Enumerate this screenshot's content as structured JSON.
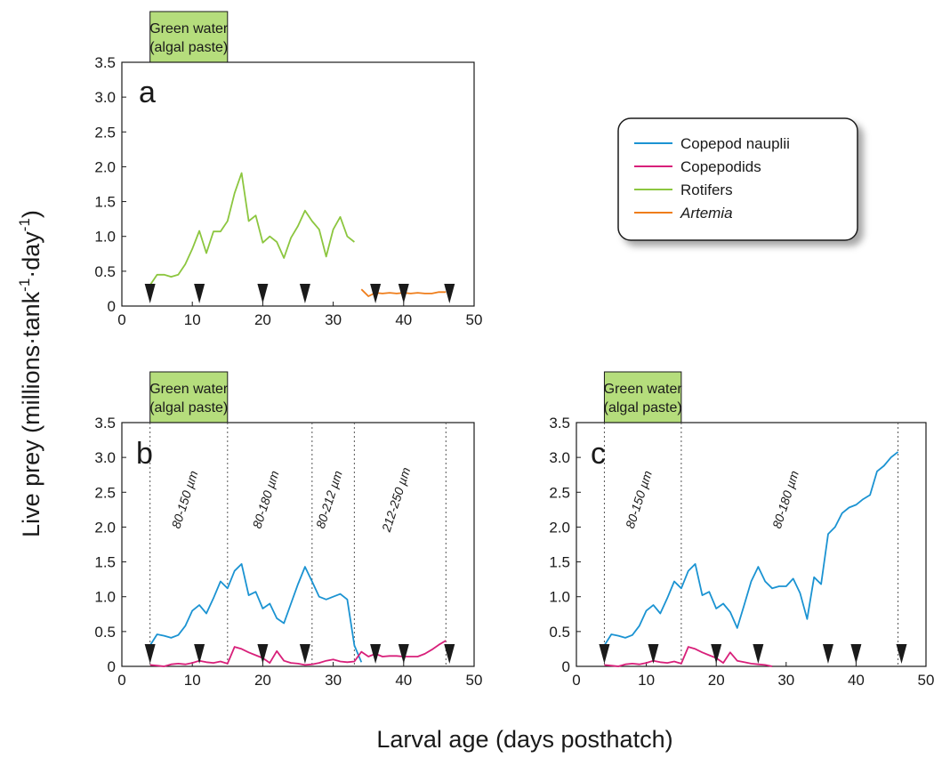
{
  "figure": {
    "ylabel_main": "Live prey (millions·tank",
    "ylabel_sup1": "-1",
    "ylabel_mid": "·day",
    "ylabel_sup2": "-1",
    "ylabel_end": ")",
    "xlabel": "Larval age (days posthatch)"
  },
  "green_water": {
    "line1": "Green water",
    "line2": "(algal paste)"
  },
  "colors": {
    "copepod_nauplii": "#1b93d2",
    "copepodids": "#d8207a",
    "rotifers": "#8cc63f",
    "artemia": "#ef7d1a",
    "green_box": "#b5dd7c"
  },
  "legend": {
    "items": [
      {
        "label": "Copepod nauplii",
        "color": "#1b93d2",
        "italic": false
      },
      {
        "label": "Copepodids",
        "color": "#d8207a",
        "italic": false
      },
      {
        "label": "Rotifers",
        "color": "#8cc63f",
        "italic": false
      },
      {
        "label": "Artemia",
        "color": "#ef7d1a",
        "italic": true
      }
    ]
  },
  "chart_data": [
    {
      "type": "line",
      "panel": "a",
      "xlim": [
        0,
        50
      ],
      "ylim": [
        0,
        3.5
      ],
      "xticks": [
        0,
        10,
        20,
        30,
        40,
        50
      ],
      "yticks": [
        0,
        0.5,
        1.0,
        1.5,
        2.0,
        2.5,
        3.0,
        3.5
      ],
      "ytick_labels": [
        "0",
        "0.5",
        "1.0",
        "1.5",
        "2.0",
        "2.5",
        "3.0",
        "3.5"
      ],
      "green_water_days": [
        4,
        15
      ],
      "markers_days": [
        4,
        11,
        20,
        26,
        36,
        40,
        46.5
      ],
      "dividers": [],
      "range_labels": [],
      "series": [
        {
          "key": "rotifers",
          "x": [
            4,
            5,
            6,
            7,
            8,
            9,
            10,
            11,
            12,
            13,
            14,
            15,
            16,
            17,
            18,
            19,
            20,
            21,
            22,
            23,
            24,
            25,
            26,
            27,
            28,
            29,
            30,
            31,
            32,
            33
          ],
          "y": [
            0.3,
            0.45,
            0.45,
            0.42,
            0.45,
            0.6,
            0.82,
            1.08,
            0.76,
            1.07,
            1.07,
            1.22,
            1.62,
            1.91,
            1.22,
            1.3,
            0.91,
            1.0,
            0.92,
            0.69,
            0.98,
            1.15,
            1.37,
            1.22,
            1.1,
            0.71,
            1.1,
            1.28,
            1.0,
            0.92
          ]
        },
        {
          "key": "artemia",
          "x": [
            34,
            35,
            36,
            37,
            38,
            39,
            40,
            41,
            42,
            43,
            44,
            45,
            46
          ],
          "y": [
            0.24,
            0.14,
            0.19,
            0.18,
            0.19,
            0.18,
            0.19,
            0.18,
            0.19,
            0.18,
            0.18,
            0.2,
            0.2
          ]
        }
      ]
    },
    {
      "type": "line",
      "panel": "b",
      "xlim": [
        0,
        50
      ],
      "ylim": [
        0,
        3.5
      ],
      "xticks": [
        0,
        10,
        20,
        30,
        40,
        50
      ],
      "yticks": [
        0,
        0.5,
        1.0,
        1.5,
        2.0,
        2.5,
        3.0,
        3.5
      ],
      "ytick_labels": [
        "0",
        "0.5",
        "1.0",
        "1.5",
        "2.0",
        "2.5",
        "3.0",
        "3.5"
      ],
      "green_water_days": [
        4,
        15
      ],
      "markers_days": [
        4,
        11,
        20,
        26,
        36,
        40,
        46.5
      ],
      "dividers": [
        4,
        15,
        27,
        33,
        46
      ],
      "range_labels": [
        {
          "text": "80-150 µm",
          "day": 9.5
        },
        {
          "text": "80-180 µm",
          "day": 21
        },
        {
          "text": "80-212 µm",
          "day": 30
        },
        {
          "text": "212-250 µm",
          "day": 39.5
        }
      ],
      "series": [
        {
          "key": "copepod_nauplii",
          "x": [
            4,
            5,
            6,
            7,
            8,
            9,
            10,
            11,
            12,
            13,
            14,
            15,
            16,
            17,
            18,
            19,
            20,
            21,
            22,
            23,
            24,
            25,
            26,
            27,
            28,
            29,
            30,
            31,
            32,
            33,
            34
          ],
          "y": [
            0.3,
            0.46,
            0.44,
            0.41,
            0.45,
            0.58,
            0.8,
            0.88,
            0.76,
            0.98,
            1.22,
            1.12,
            1.37,
            1.47,
            1.02,
            1.07,
            0.83,
            0.9,
            0.69,
            0.62,
            0.9,
            1.18,
            1.43,
            1.22,
            1.0,
            0.96,
            1.0,
            1.04,
            0.96,
            0.3,
            0.06
          ]
        },
        {
          "key": "copepodids",
          "x": [
            4,
            5,
            6,
            7,
            8,
            9,
            10,
            11,
            12,
            13,
            14,
            15,
            16,
            17,
            18,
            19,
            20,
            21,
            22,
            23,
            24,
            25,
            26,
            27,
            28,
            29,
            30,
            31,
            32,
            33,
            34,
            35,
            36,
            37,
            38,
            39,
            40,
            41,
            42,
            43,
            44,
            45,
            46
          ],
          "y": [
            0.02,
            0.01,
            0.0,
            0.03,
            0.04,
            0.03,
            0.05,
            0.08,
            0.06,
            0.05,
            0.07,
            0.04,
            0.28,
            0.25,
            0.2,
            0.16,
            0.12,
            0.05,
            0.22,
            0.08,
            0.05,
            0.04,
            0.02,
            0.03,
            0.05,
            0.08,
            0.1,
            0.07,
            0.06,
            0.07,
            0.21,
            0.14,
            0.18,
            0.14,
            0.15,
            0.15,
            0.14,
            0.14,
            0.14,
            0.18,
            0.24,
            0.31,
            0.37
          ]
        }
      ]
    },
    {
      "type": "line",
      "panel": "c",
      "xlim": [
        0,
        50
      ],
      "ylim": [
        0,
        3.5
      ],
      "xticks": [
        0,
        10,
        20,
        30,
        40,
        50
      ],
      "yticks": [
        0,
        0.5,
        1.0,
        1.5,
        2.0,
        2.5,
        3.0,
        3.5
      ],
      "ytick_labels": [
        "0",
        "0.5",
        "1.0",
        "1.5",
        "2.0",
        "2.5",
        "3.0",
        "3.5"
      ],
      "green_water_days": [
        4,
        15
      ],
      "markers_days": [
        4,
        11,
        20,
        26,
        36,
        40,
        46.5
      ],
      "dividers": [
        4,
        15,
        46
      ],
      "range_labels": [
        {
          "text": "80-150 µm",
          "day": 9.5
        },
        {
          "text": "80-180 µm",
          "day": 30.5
        }
      ],
      "series": [
        {
          "key": "copepod_nauplii",
          "x": [
            4,
            5,
            6,
            7,
            8,
            9,
            10,
            11,
            12,
            13,
            14,
            15,
            16,
            17,
            18,
            19,
            20,
            21,
            22,
            23,
            24,
            25,
            26,
            27,
            28,
            29,
            30,
            31,
            32,
            33,
            34,
            35,
            36,
            37,
            38,
            39,
            40,
            41,
            42,
            43,
            44,
            45,
            46
          ],
          "y": [
            0.3,
            0.46,
            0.44,
            0.41,
            0.45,
            0.58,
            0.8,
            0.88,
            0.76,
            0.98,
            1.22,
            1.12,
            1.37,
            1.47,
            1.02,
            1.07,
            0.83,
            0.9,
            0.78,
            0.55,
            0.88,
            1.22,
            1.43,
            1.22,
            1.12,
            1.15,
            1.15,
            1.26,
            1.05,
            0.68,
            1.28,
            1.18,
            1.9,
            2.0,
            2.2,
            2.28,
            2.32,
            2.4,
            2.46,
            2.8,
            2.88,
            3.0,
            3.08
          ]
        },
        {
          "key": "copepodids",
          "x": [
            4,
            5,
            6,
            7,
            8,
            9,
            10,
            11,
            12,
            13,
            14,
            15,
            16,
            17,
            18,
            19,
            20,
            21,
            22,
            23,
            24,
            25,
            26,
            27,
            28
          ],
          "y": [
            0.02,
            0.01,
            0.0,
            0.03,
            0.04,
            0.03,
            0.05,
            0.08,
            0.06,
            0.05,
            0.07,
            0.04,
            0.28,
            0.25,
            0.2,
            0.16,
            0.12,
            0.05,
            0.2,
            0.08,
            0.06,
            0.04,
            0.03,
            0.02,
            0.0
          ]
        }
      ]
    }
  ]
}
